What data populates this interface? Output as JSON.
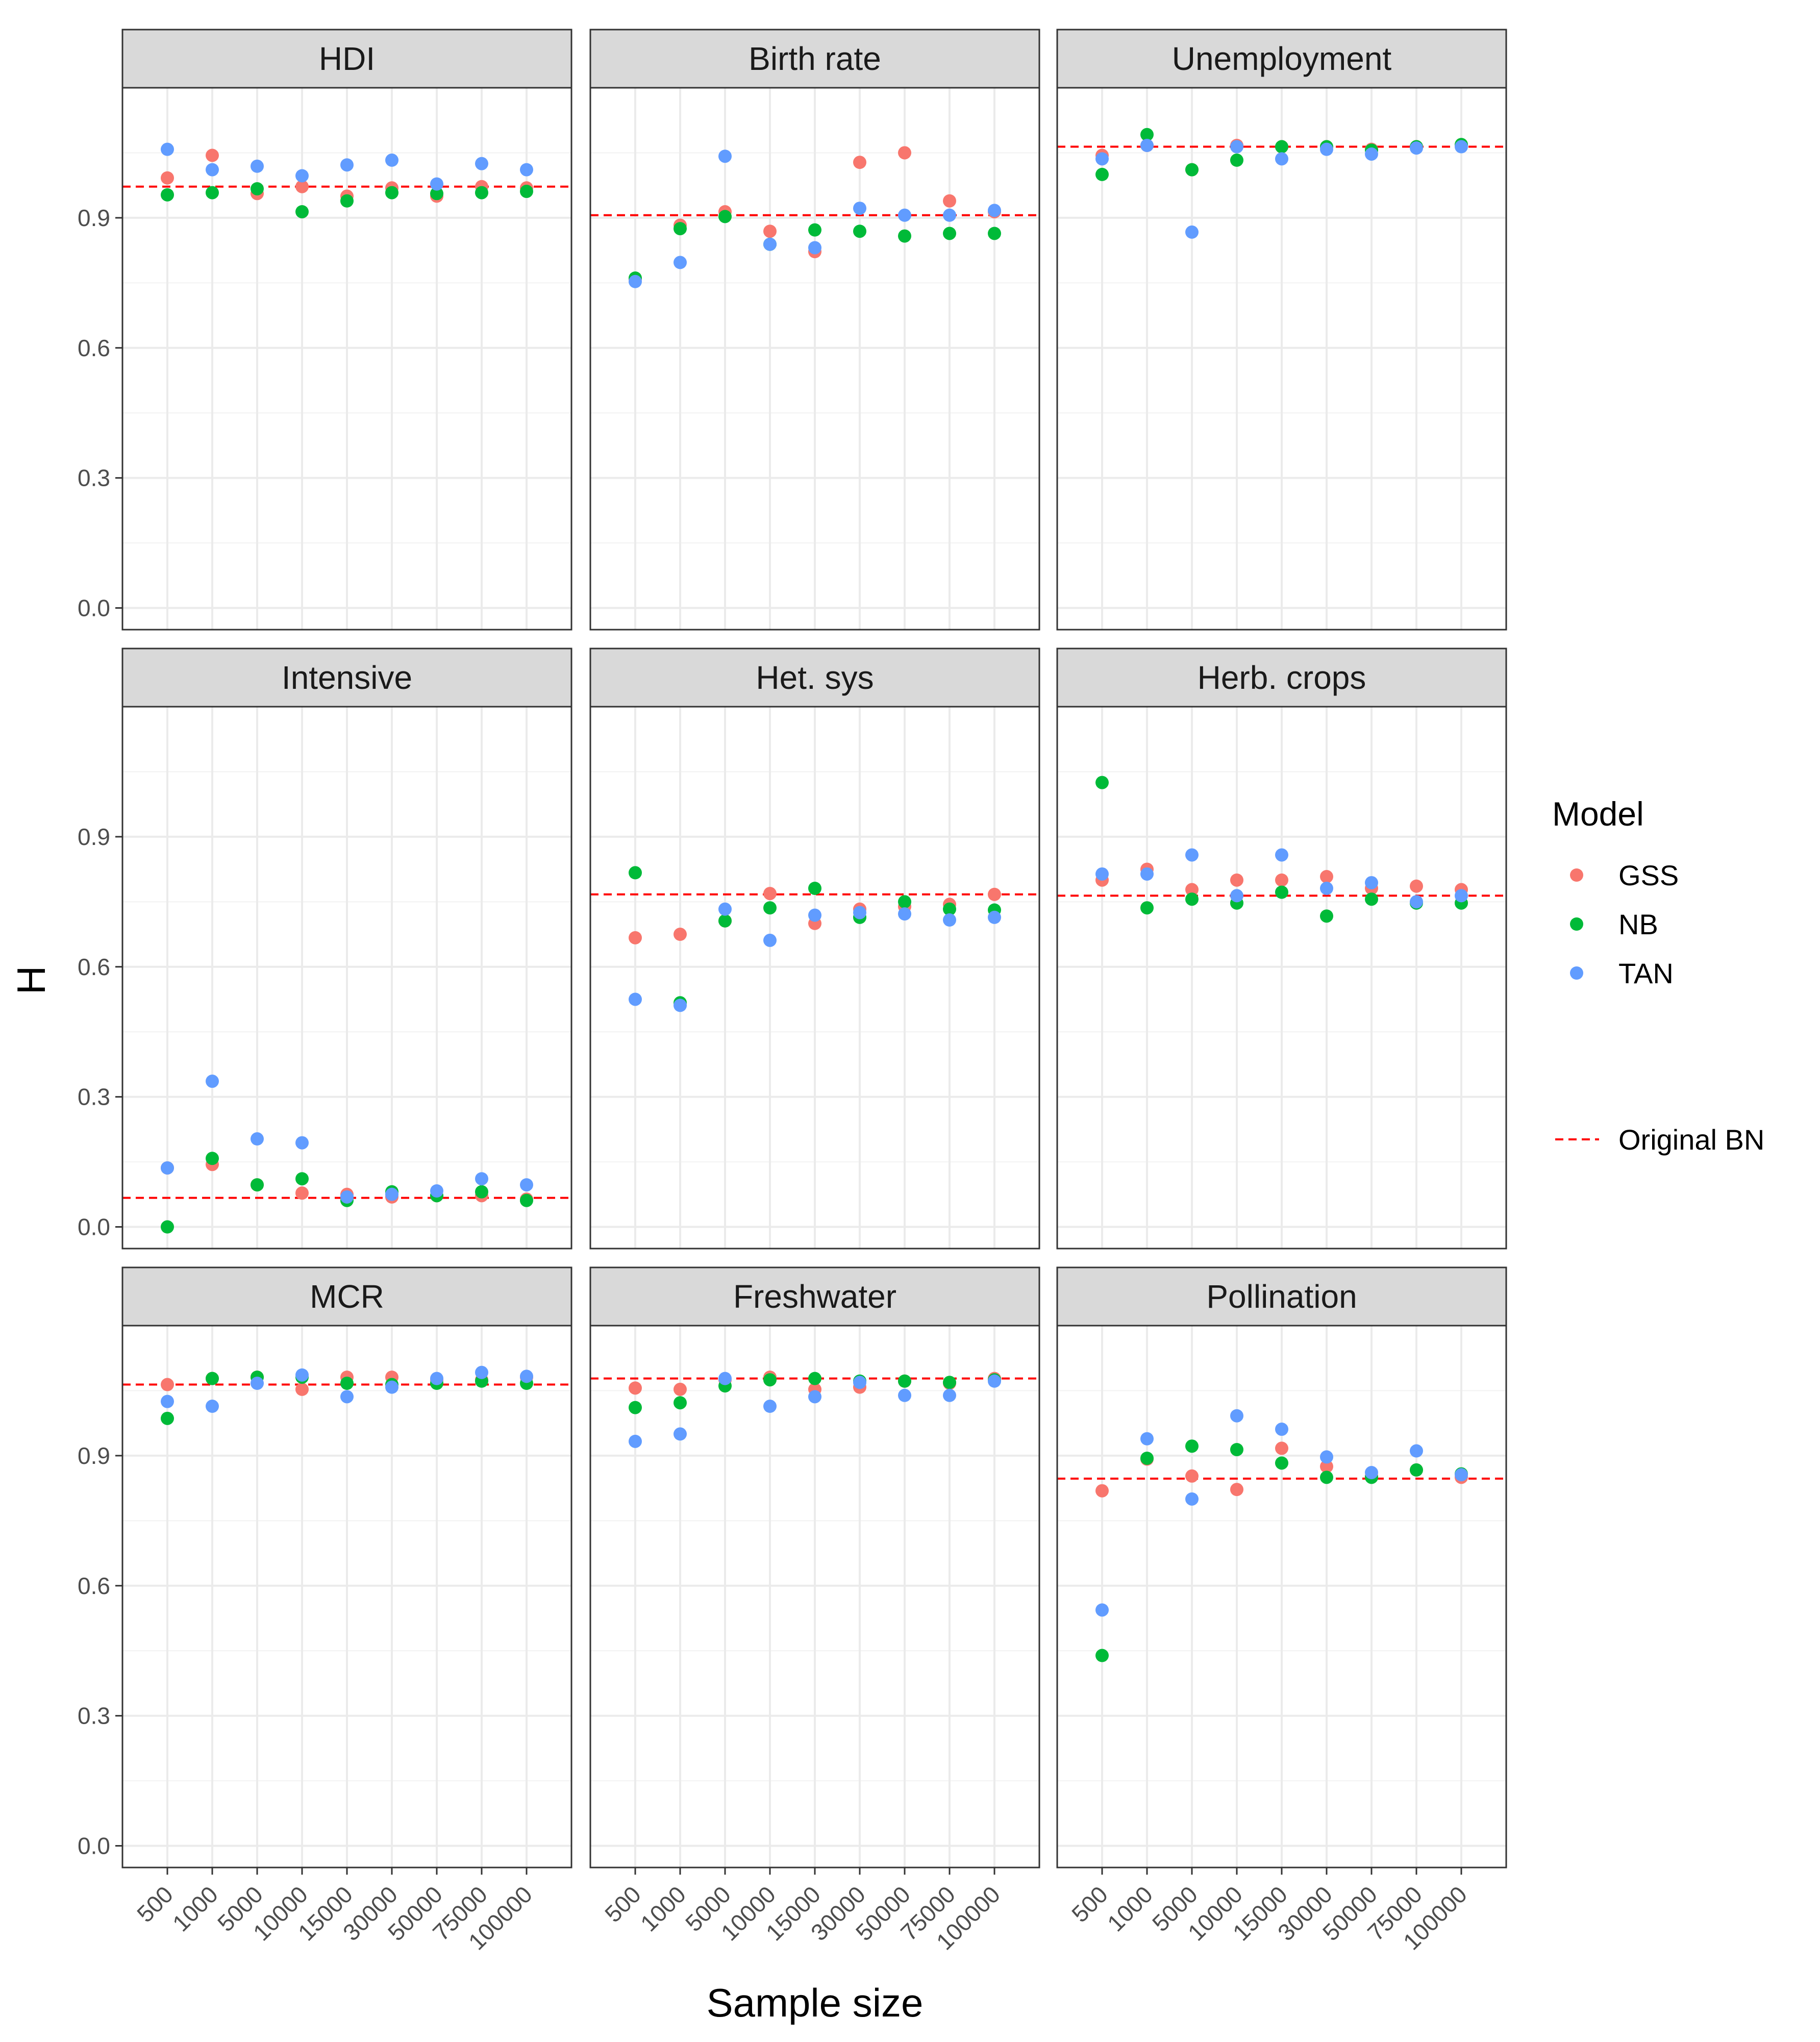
{
  "chart_data": {
    "type": "scatter",
    "layout": "facet-grid-3x3",
    "xlabel": "Sample size",
    "ylabel": "H",
    "x_categories": [
      "500",
      "1000",
      "5000",
      "10000",
      "15000",
      "30000",
      "50000",
      "75000",
      "100000"
    ],
    "y_ticks": [
      "0.0",
      "0.3",
      "0.6",
      "0.9"
    ],
    "ylim": [
      -0.05,
      1.2
    ],
    "legend": {
      "title": "Model",
      "placement": "right",
      "entries": [
        {
          "name": "GSS",
          "color": "#F8766D"
        },
        {
          "name": "NB",
          "color": "#00BA38"
        },
        {
          "name": "TAN",
          "color": "#619CFF"
        }
      ],
      "reference_label": "Original BN",
      "reference_color": "#FF0000"
    },
    "facets": [
      {
        "title": "HDI",
        "reference": 0.972,
        "series": {
          "GSS": [
            0.992,
            1.044,
            0.956,
            0.972,
            0.95,
            0.969,
            0.95,
            0.972,
            0.969
          ],
          "NB": [
            0.953,
            0.958,
            0.967,
            0.914,
            0.939,
            0.958,
            0.956,
            0.958,
            0.961
          ],
          "TAN": [
            1.058,
            1.011,
            1.019,
            0.997,
            1.022,
            1.033,
            0.978,
            1.025,
            1.011
          ]
        }
      },
      {
        "title": "Birth rate",
        "reference": 0.906,
        "series": {
          "GSS": [
            0.758,
            0.883,
            0.914,
            0.869,
            0.822,
            1.028,
            1.05,
            0.939,
            0.914
          ],
          "NB": [
            0.761,
            0.875,
            0.903,
            0.839,
            0.872,
            0.869,
            0.858,
            0.864,
            0.864
          ],
          "TAN": [
            0.753,
            0.797,
            1.042,
            0.839,
            0.831,
            0.922,
            0.906,
            0.906,
            0.917
          ]
        }
      },
      {
        "title": "Unemployment",
        "reference": 1.064,
        "series": {
          "GSS": [
            1.044,
            1.067,
            1.011,
            1.067,
            1.064,
            1.064,
            1.058,
            1.064,
            1.067
          ],
          "NB": [
            1.0,
            1.092,
            1.011,
            1.033,
            1.064,
            1.064,
            1.056,
            1.064,
            1.069
          ],
          "TAN": [
            1.036,
            1.067,
            0.867,
            1.064,
            1.036,
            1.058,
            1.047,
            1.061,
            1.064
          ]
        }
      },
      {
        "title": "Intensive",
        "reference": 0.067,
        "series": {
          "GSS": [
            0.136,
            0.144,
            0.097,
            0.078,
            0.075,
            0.069,
            0.072,
            0.072,
            0.064
          ],
          "NB": [
            0.0,
            0.158,
            0.097,
            0.111,
            0.061,
            0.081,
            0.072,
            0.081,
            0.061
          ],
          "TAN": [
            0.136,
            0.336,
            0.203,
            0.194,
            0.069,
            0.075,
            0.083,
            0.111,
            0.097
          ]
        }
      },
      {
        "title": "Het. sys",
        "reference": 0.767,
        "series": {
          "GSS": [
            0.667,
            0.675,
            0.706,
            0.769,
            0.7,
            0.733,
            0.739,
            0.744,
            0.767
          ],
          "NB": [
            0.817,
            0.517,
            0.706,
            0.736,
            0.781,
            0.714,
            0.75,
            0.733,
            0.731
          ],
          "TAN": [
            0.525,
            0.511,
            0.733,
            0.661,
            0.719,
            0.725,
            0.722,
            0.708,
            0.714
          ]
        }
      },
      {
        "title": "Herb. crops",
        "reference": 0.764,
        "series": {
          "GSS": [
            0.8,
            0.825,
            0.778,
            0.8,
            0.8,
            0.808,
            0.781,
            0.786,
            0.778
          ],
          "NB": [
            1.025,
            0.736,
            0.756,
            0.747,
            0.772,
            0.717,
            0.756,
            0.747,
            0.747
          ],
          "TAN": [
            0.814,
            0.814,
            0.858,
            0.764,
            0.858,
            0.781,
            0.794,
            0.75,
            0.764
          ]
        }
      },
      {
        "title": "MCR",
        "reference": 1.064,
        "series": {
          "GSS": [
            1.064,
            1.078,
            1.081,
            1.053,
            1.081,
            1.081,
            1.075,
            1.075,
            1.081
          ],
          "NB": [
            0.986,
            1.078,
            1.081,
            1.081,
            1.067,
            1.064,
            1.067,
            1.072,
            1.067
          ],
          "TAN": [
            1.025,
            1.014,
            1.067,
            1.086,
            1.036,
            1.058,
            1.078,
            1.092,
            1.083
          ]
        }
      },
      {
        "title": "Freshwater",
        "reference": 1.078,
        "series": {
          "GSS": [
            1.056,
            1.053,
            1.075,
            1.081,
            1.053,
            1.058,
            1.072,
            1.067,
            1.078
          ],
          "NB": [
            1.011,
            1.022,
            1.061,
            1.075,
            1.078,
            1.072,
            1.072,
            1.069,
            1.075
          ],
          "TAN": [
            0.933,
            0.95,
            1.078,
            1.014,
            1.036,
            1.069,
            1.039,
            1.039,
            1.072
          ]
        }
      },
      {
        "title": "Pollination",
        "reference": 0.847,
        "series": {
          "GSS": [
            0.819,
            0.892,
            0.853,
            0.822,
            0.917,
            0.875,
            0.853,
            0.867,
            0.85
          ],
          "NB": [
            0.439,
            0.894,
            0.922,
            0.914,
            0.883,
            0.85,
            0.85,
            0.867,
            0.858
          ],
          "TAN": [
            0.544,
            0.939,
            0.8,
            0.992,
            0.961,
            0.897,
            0.861,
            0.911,
            0.856
          ]
        }
      }
    ]
  }
}
